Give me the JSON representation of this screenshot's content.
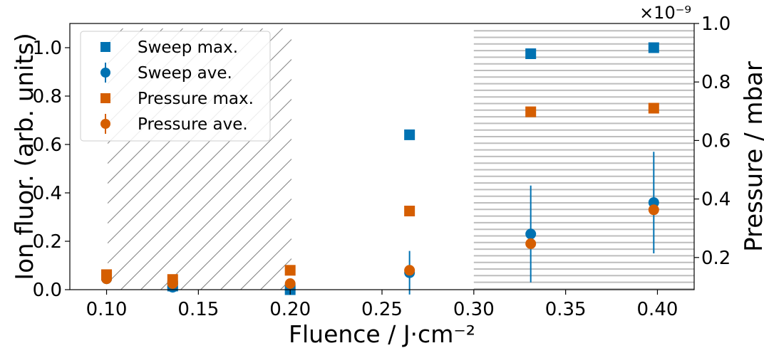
{
  "chart_data": {
    "type": "scatter",
    "title": "",
    "xlabel": "Fluence / J·cm⁻²",
    "ylabel_left": "Ion fluor. (arb. units)",
    "ylabel_right": "Pressure / mbar",
    "right_offset_text": "×10⁻⁹",
    "xlim": [
      0.08,
      0.42
    ],
    "ylim_left": [
      0.0,
      1.1
    ],
    "ylim_right": [
      0.09,
      1.0
    ],
    "x_ticks": [
      0.1,
      0.15,
      0.2,
      0.25,
      0.3,
      0.35,
      0.4
    ],
    "x_tick_labels": [
      "0.10",
      "0.15",
      "0.20",
      "0.25",
      "0.30",
      "0.35",
      "0.40"
    ],
    "y_left_ticks": [
      0.0,
      0.2,
      0.4,
      0.6,
      0.8,
      1.0
    ],
    "y_left_tick_labels": [
      "0.0",
      "0.2",
      "0.4",
      "0.6",
      "0.8",
      "1.0"
    ],
    "y_right_ticks": [
      0.2,
      0.4,
      0.6,
      0.8,
      1.0
    ],
    "y_right_tick_labels": [
      "0.2",
      "0.4",
      "0.6",
      "0.8",
      "1.0"
    ],
    "grid": false,
    "legend_position": "top-left",
    "colors": {
      "sweep": "#0072b2",
      "pressure": "#d55e00",
      "hatch": "#7f7f7f",
      "hlines": "#bdbdbd"
    },
    "regions": [
      {
        "x_start": 0.1,
        "x_end": 0.2,
        "pattern": "diagonal-hatch",
        "y_top": 1.08
      },
      {
        "x_start": 0.3,
        "x_end": 0.42,
        "pattern": "horizontal-lines",
        "y_top": 1.07
      }
    ],
    "series": [
      {
        "name": "Sweep max.",
        "marker": "square",
        "color_key": "sweep",
        "x": [
          0.1,
          0.136,
          0.2,
          0.265,
          0.331,
          0.398
        ],
        "y": [
          0.06,
          0.015,
          0.0,
          0.64,
          0.975,
          1.0
        ]
      },
      {
        "name": "Sweep ave.",
        "marker": "circle",
        "color_key": "sweep",
        "x": [
          0.1,
          0.136,
          0.2,
          0.265,
          0.331,
          0.398
        ],
        "y": [
          0.045,
          0.01,
          0.0,
          0.07,
          0.23,
          0.36
        ],
        "yerr": [
          0.0,
          0.0,
          0.0,
          0.09,
          0.2,
          0.21
        ]
      },
      {
        "name": "Pressure max.",
        "marker": "square",
        "color_key": "pressure",
        "x": [
          0.1,
          0.136,
          0.2,
          0.265,
          0.331,
          0.398
        ],
        "y": [
          0.062,
          0.042,
          0.08,
          0.325,
          0.735,
          0.75
        ]
      },
      {
        "name": "Pressure ave.",
        "marker": "circle",
        "color_key": "pressure",
        "x": [
          0.1,
          0.136,
          0.2,
          0.265,
          0.331,
          0.398
        ],
        "y": [
          0.045,
          0.025,
          0.025,
          0.08,
          0.19,
          0.33
        ]
      }
    ]
  }
}
